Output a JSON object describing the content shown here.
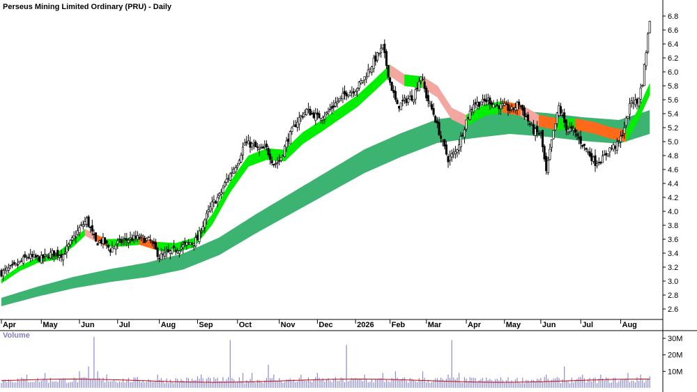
{
  "chart_data": {
    "type": "candlestick",
    "title": "Perseus Mining Limited Ordinary (PRU) - Daily",
    "price_axis": {
      "ylim": [
        2.45,
        6.95
      ],
      "ticks": [
        "6.8",
        "6.6",
        "6.4",
        "6.2",
        "6.0",
        "5.8",
        "5.6",
        "5.4",
        "5.2",
        "5.0",
        "4.8",
        "4.6",
        "4.4",
        "4.2",
        "4.0",
        "3.8",
        "3.6",
        "3.4",
        "3.2",
        "3.0",
        "2.8",
        "2.6"
      ]
    },
    "months": [
      {
        "label": "Apr",
        "day": 0
      },
      {
        "label": "May",
        "day": 22
      },
      {
        "label": "Jun",
        "day": 43
      },
      {
        "label": "Jul",
        "day": 64
      },
      {
        "label": "Aug",
        "day": 87
      },
      {
        "label": "Sep",
        "day": 108
      },
      {
        "label": "Oct",
        "day": 130
      },
      {
        "label": "Nov",
        "day": 153
      },
      {
        "label": "Dec",
        "day": 174
      },
      {
        "label": "2026",
        "day": 195
      },
      {
        "label": "Feb",
        "day": 214
      },
      {
        "label": "Mar",
        "day": 234
      },
      {
        "label": "Apr",
        "day": 256
      },
      {
        "label": "May",
        "day": 277
      },
      {
        "label": "Jun",
        "day": 297
      },
      {
        "label": "Jul",
        "day": 319
      },
      {
        "label": "Aug",
        "day": 341
      }
    ],
    "total_days": 355,
    "close_anchors": [
      [
        0,
        3.12
      ],
      [
        8,
        3.22
      ],
      [
        14,
        3.35
      ],
      [
        22,
        3.32
      ],
      [
        28,
        3.4
      ],
      [
        34,
        3.38
      ],
      [
        43,
        3.75
      ],
      [
        47,
        3.88
      ],
      [
        52,
        3.55
      ],
      [
        56,
        3.58
      ],
      [
        60,
        3.45
      ],
      [
        64,
        3.55
      ],
      [
        70,
        3.6
      ],
      [
        76,
        3.62
      ],
      [
        82,
        3.58
      ],
      [
        87,
        3.35
      ],
      [
        92,
        3.4
      ],
      [
        98,
        3.48
      ],
      [
        104,
        3.55
      ],
      [
        108,
        3.6
      ],
      [
        112,
        3.88
      ],
      [
        116,
        4.1
      ],
      [
        120,
        4.22
      ],
      [
        124,
        4.45
      ],
      [
        130,
        4.7
      ],
      [
        134,
        4.98
      ],
      [
        138,
        4.95
      ],
      [
        142,
        4.88
      ],
      [
        146,
        4.9
      ],
      [
        150,
        4.68
      ],
      [
        153,
        4.72
      ],
      [
        158,
        5.05
      ],
      [
        163,
        5.3
      ],
      [
        168,
        5.45
      ],
      [
        174,
        5.35
      ],
      [
        179,
        5.4
      ],
      [
        184,
        5.55
      ],
      [
        190,
        5.7
      ],
      [
        195,
        5.75
      ],
      [
        200,
        5.92
      ],
      [
        205,
        6.15
      ],
      [
        210,
        6.35
      ],
      [
        214,
        5.85
      ],
      [
        218,
        5.5
      ],
      [
        223,
        5.6
      ],
      [
        227,
        5.65
      ],
      [
        231,
        5.95
      ],
      [
        234,
        5.65
      ],
      [
        238,
        5.4
      ],
      [
        242,
        5.05
      ],
      [
        246,
        4.75
      ],
      [
        250,
        4.85
      ],
      [
        253,
        5.05
      ],
      [
        256,
        5.3
      ],
      [
        260,
        5.55
      ],
      [
        264,
        5.55
      ],
      [
        268,
        5.6
      ],
      [
        272,
        5.52
      ],
      [
        277,
        5.5
      ],
      [
        281,
        5.45
      ],
      [
        285,
        5.55
      ],
      [
        289,
        5.35
      ],
      [
        293,
        5.15
      ],
      [
        297,
        5.1
      ],
      [
        300,
        4.55
      ],
      [
        303,
        5.0
      ],
      [
        307,
        5.5
      ],
      [
        311,
        5.2
      ],
      [
        315,
        5.15
      ],
      [
        319,
        5.0
      ],
      [
        323,
        4.85
      ],
      [
        327,
        4.7
      ],
      [
        331,
        4.75
      ],
      [
        335,
        4.9
      ],
      [
        339,
        4.95
      ],
      [
        341,
        5.05
      ],
      [
        344,
        5.3
      ],
      [
        347,
        5.6
      ],
      [
        350,
        5.55
      ],
      [
        353,
        5.85
      ],
      [
        355,
        6.3
      ],
      [
        357,
        6.75
      ]
    ],
    "ema_short_anchors": [
      [
        0,
        3.0
      ],
      [
        10,
        3.18
      ],
      [
        20,
        3.3
      ],
      [
        30,
        3.35
      ],
      [
        40,
        3.55
      ],
      [
        46,
        3.7
      ],
      [
        52,
        3.62
      ],
      [
        58,
        3.55
      ],
      [
        66,
        3.55
      ],
      [
        76,
        3.58
      ],
      [
        86,
        3.5
      ],
      [
        96,
        3.48
      ],
      [
        106,
        3.55
      ],
      [
        116,
        3.88
      ],
      [
        126,
        4.35
      ],
      [
        136,
        4.72
      ],
      [
        146,
        4.82
      ],
      [
        156,
        4.8
      ],
      [
        166,
        5.05
      ],
      [
        176,
        5.22
      ],
      [
        186,
        5.4
      ],
      [
        196,
        5.58
      ],
      [
        206,
        5.82
      ],
      [
        214,
        6.02
      ],
      [
        222,
        5.88
      ],
      [
        232,
        5.85
      ],
      [
        240,
        5.72
      ],
      [
        248,
        5.4
      ],
      [
        256,
        5.3
      ],
      [
        266,
        5.45
      ],
      [
        276,
        5.5
      ],
      [
        286,
        5.45
      ],
      [
        296,
        5.3
      ],
      [
        306,
        5.25
      ],
      [
        316,
        5.25
      ],
      [
        326,
        5.2
      ],
      [
        336,
        5.12
      ],
      [
        344,
        5.08
      ],
      [
        350,
        5.35
      ],
      [
        357,
        5.75
      ]
    ],
    "ema_long_anchors": [
      [
        0,
        2.7
      ],
      [
        20,
        2.85
      ],
      [
        40,
        2.98
      ],
      [
        60,
        3.08
      ],
      [
        80,
        3.16
      ],
      [
        100,
        3.28
      ],
      [
        120,
        3.5
      ],
      [
        140,
        3.82
      ],
      [
        160,
        4.12
      ],
      [
        180,
        4.42
      ],
      [
        200,
        4.72
      ],
      [
        220,
        4.95
      ],
      [
        240,
        5.15
      ],
      [
        260,
        5.22
      ],
      [
        280,
        5.28
      ],
      [
        300,
        5.24
      ],
      [
        320,
        5.18
      ],
      [
        340,
        5.14
      ],
      [
        357,
        5.28
      ]
    ],
    "volume": {
      "label": "Volume",
      "ylim": [
        0,
        33000000
      ],
      "ticks": [
        "30M",
        "20M",
        "10M"
      ],
      "base": 5500000,
      "avg": 4800000,
      "spikes": [
        [
          14,
          8000000
        ],
        [
          24,
          9000000
        ],
        [
          43,
          10000000
        ],
        [
          48,
          13000000
        ],
        [
          51,
          31000000
        ],
        [
          53,
          10000000
        ],
        [
          58,
          8000000
        ],
        [
          86,
          8000000
        ],
        [
          108,
          7000000
        ],
        [
          110,
          8000000
        ],
        [
          126,
          29000000
        ],
        [
          133,
          9000000
        ],
        [
          138,
          9000000
        ],
        [
          147,
          14000000
        ],
        [
          150,
          8000000
        ],
        [
          165,
          8000000
        ],
        [
          174,
          9000000
        ],
        [
          190,
          26000000
        ],
        [
          200,
          8000000
        ],
        [
          210,
          9000000
        ],
        [
          217,
          10000000
        ],
        [
          232,
          10000000
        ],
        [
          246,
          8000000
        ],
        [
          248,
          29000000
        ],
        [
          252,
          9000000
        ],
        [
          300,
          8000000
        ],
        [
          310,
          13000000
        ],
        [
          320,
          8000000
        ],
        [
          330,
          8000000
        ],
        [
          345,
          9000000
        ],
        [
          352,
          8000000
        ],
        [
          357,
          7000000
        ]
      ]
    },
    "colors": {
      "background": "#ffffff",
      "candle_up": "#ffffff",
      "candle_down": "#000000",
      "candle_outline": "#000000",
      "band_long": "#3cb371",
      "band_short_bull": "#00ee00",
      "band_short_bear": "#ff6a1a",
      "band_short_transition": "#f4a6a0",
      "volume_bar": "#8a8ad4",
      "volume_avg": "#cc0000",
      "axis_line": "#000000",
      "volume_label": "#8080c0"
    }
  }
}
